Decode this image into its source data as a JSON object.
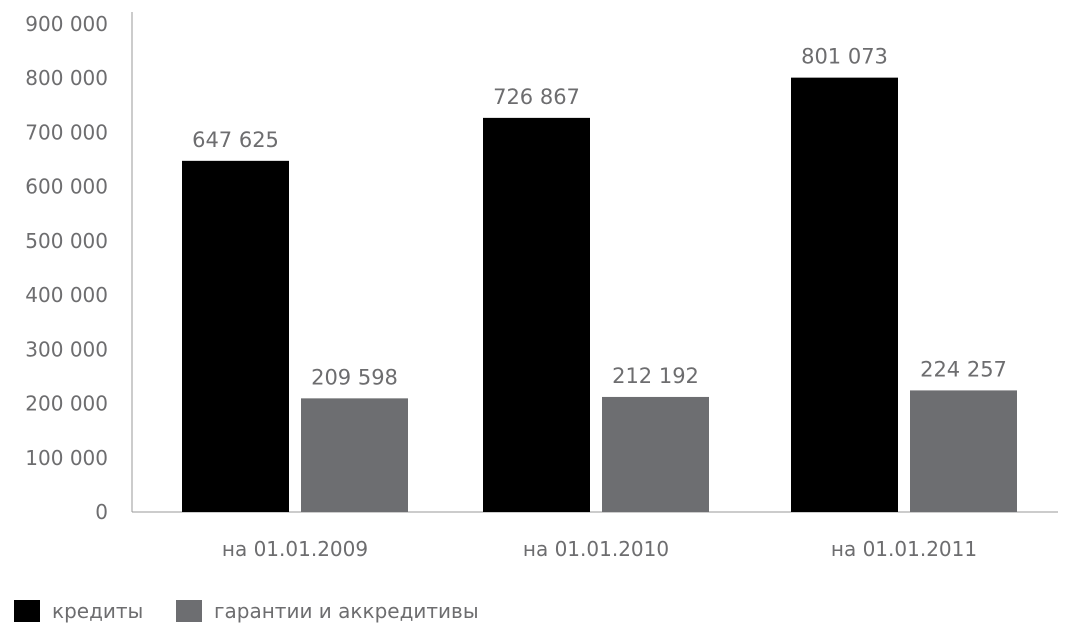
{
  "chart_data": {
    "type": "bar",
    "title": "",
    "xlabel": "",
    "ylabel": "",
    "categories": [
      "на 01.01.2009",
      "на 01.01.2010",
      "на 01.01.2011"
    ],
    "series": [
      {
        "name": "кредиты",
        "color": "#000000",
        "values": [
          647625,
          726867,
          801073
        ],
        "labels": [
          "647 625",
          "726 867",
          "801 073"
        ]
      },
      {
        "name": "гарантии и аккредитивы",
        "color": "#6d6e71",
        "values": [
          209598,
          212192,
          224257
        ],
        "labels": [
          "209 598",
          "212 192",
          "224 257"
        ]
      }
    ],
    "ylim": [
      0,
      900000
    ],
    "yticks": [
      0,
      100000,
      200000,
      300000,
      400000,
      500000,
      600000,
      700000,
      800000,
      900000
    ],
    "ytick_labels": [
      "0",
      "100 000",
      "200 000",
      "300 000",
      "400 000",
      "500 000",
      "600 000",
      "700 000",
      "800 000",
      "900 000"
    ],
    "grid": false,
    "legend_position": "bottom-left"
  }
}
